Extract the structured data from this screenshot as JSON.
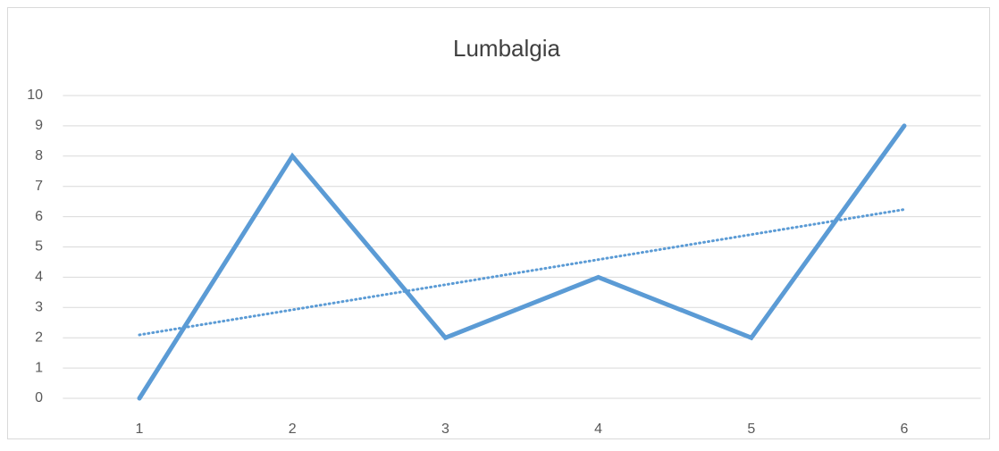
{
  "chart_data": {
    "type": "line",
    "title": "Lumbalgia",
    "categories": [
      "1",
      "2",
      "3",
      "4",
      "5",
      "6"
    ],
    "series": [
      {
        "name": "Lumbalgia",
        "color": "#5b9bd5",
        "values": [
          0,
          8,
          2,
          4,
          2,
          9
        ]
      }
    ],
    "ylim": [
      0,
      10
    ],
    "yticks": [
      0,
      1,
      2,
      3,
      4,
      5,
      6,
      7,
      8,
      9,
      10
    ],
    "grid": true,
    "trendline": "linear",
    "legend": false
  }
}
